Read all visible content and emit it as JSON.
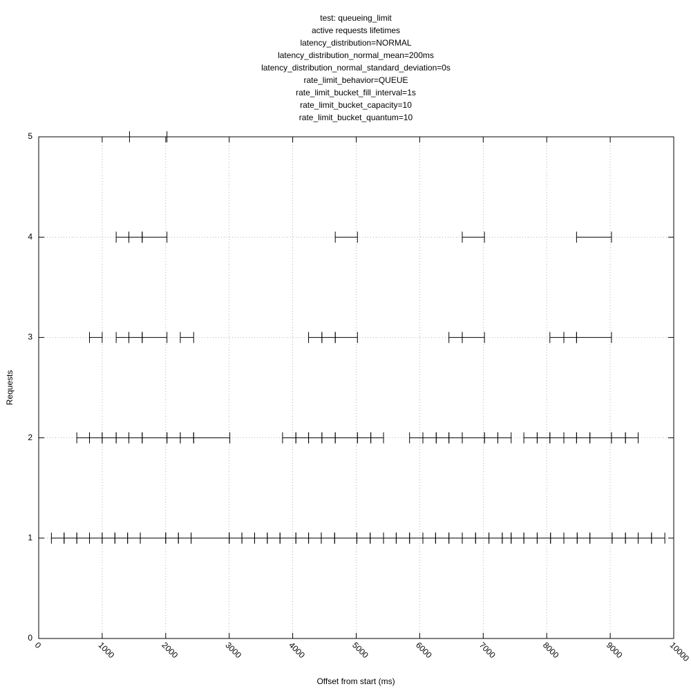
{
  "chart_data": {
    "type": "interval",
    "title": [
      "test: queueing_limit",
      "active requests lifetimes",
      "latency_distribution=NORMAL",
      "latency_distribution_normal_mean=200ms",
      "latency_distribution_normal_standard_deviation=0s",
      "rate_limit_behavior=QUEUE",
      "rate_limit_bucket_fill_interval=1s",
      "rate_limit_bucket_capacity=10",
      "rate_limit_bucket_quantum=10"
    ],
    "xlabel": "Offset from start (ms)",
    "ylabel": "Requests",
    "xlim": [
      0,
      10000
    ],
    "ylim": [
      0,
      5
    ],
    "xticks": [
      0,
      1000,
      2000,
      3000,
      4000,
      5000,
      6000,
      7000,
      8000,
      9000,
      10000
    ],
    "yticks": [
      0,
      1,
      2,
      3,
      4,
      5
    ],
    "grid": true,
    "color": "#000000",
    "levels": [
      {
        "y": 1,
        "intervals": [
          [
            200,
            400
          ],
          [
            400,
            600
          ],
          [
            600,
            800
          ],
          [
            800,
            1000
          ],
          [
            1000,
            1200
          ],
          [
            1200,
            1400
          ],
          [
            1400,
            1600
          ],
          [
            1600,
            2000
          ],
          [
            2000,
            2200
          ],
          [
            2200,
            2400
          ],
          [
            2400,
            3000
          ],
          [
            3000,
            3200
          ],
          [
            3200,
            3400
          ],
          [
            3400,
            3600
          ],
          [
            3600,
            3800
          ],
          [
            3800,
            4050
          ],
          [
            4050,
            4250
          ],
          [
            4250,
            4450
          ],
          [
            4450,
            4660
          ],
          [
            4660,
            5010
          ],
          [
            5010,
            5220
          ],
          [
            5220,
            5430
          ],
          [
            5430,
            5630
          ],
          [
            5630,
            5840
          ],
          [
            5840,
            6050
          ],
          [
            6050,
            6250
          ],
          [
            6250,
            6460
          ],
          [
            6460,
            6670
          ],
          [
            6670,
            6880
          ],
          [
            6880,
            7090
          ],
          [
            7090,
            7300
          ],
          [
            7300,
            7440
          ],
          [
            7440,
            7640
          ],
          [
            7640,
            7850
          ],
          [
            7850,
            8060
          ],
          [
            8060,
            8270
          ],
          [
            8270,
            8480
          ],
          [
            8480,
            8680
          ],
          [
            8680,
            9030
          ],
          [
            9030,
            9240
          ],
          [
            9240,
            9440
          ],
          [
            9440,
            9650
          ],
          [
            9650,
            9860
          ]
        ]
      },
      {
        "y": 2,
        "intervals": [
          [
            600,
            800
          ],
          [
            800,
            1000
          ],
          [
            1000,
            1220
          ],
          [
            1220,
            1420
          ],
          [
            1420,
            1630
          ],
          [
            1630,
            2020
          ],
          [
            2020,
            2230
          ],
          [
            2230,
            2440
          ],
          [
            2440,
            3010
          ],
          [
            3840,
            4050
          ],
          [
            4050,
            4250
          ],
          [
            4250,
            4460
          ],
          [
            4460,
            4670
          ],
          [
            4670,
            5020
          ],
          [
            5020,
            5230
          ],
          [
            5230,
            5430
          ],
          [
            5840,
            6050
          ],
          [
            6050,
            6260
          ],
          [
            6260,
            6460
          ],
          [
            6460,
            6670
          ],
          [
            6670,
            7020
          ],
          [
            7020,
            7230
          ],
          [
            7230,
            7440
          ],
          [
            7640,
            7850
          ],
          [
            7850,
            8050
          ],
          [
            8050,
            8270
          ],
          [
            8270,
            8470
          ],
          [
            8470,
            8680
          ],
          [
            8680,
            9020
          ],
          [
            9020,
            9240
          ],
          [
            9240,
            9440
          ]
        ]
      },
      {
        "y": 3,
        "intervals": [
          [
            800,
            1000
          ],
          [
            1220,
            1420
          ],
          [
            1420,
            1630
          ],
          [
            1630,
            2020
          ],
          [
            2230,
            2440
          ],
          [
            4250,
            4460
          ],
          [
            4460,
            4670
          ],
          [
            4670,
            5020
          ],
          [
            6460,
            6670
          ],
          [
            6670,
            7020
          ],
          [
            8050,
            8270
          ],
          [
            8270,
            8470
          ],
          [
            8470,
            9020
          ]
        ]
      },
      {
        "y": 4,
        "intervals": [
          [
            1220,
            1420
          ],
          [
            1420,
            1630
          ],
          [
            1630,
            2020
          ],
          [
            4670,
            5020
          ],
          [
            6670,
            7020
          ],
          [
            8470,
            9020
          ]
        ]
      },
      {
        "y": 5,
        "intervals": [
          [
            1430,
            2020
          ]
        ]
      }
    ]
  }
}
